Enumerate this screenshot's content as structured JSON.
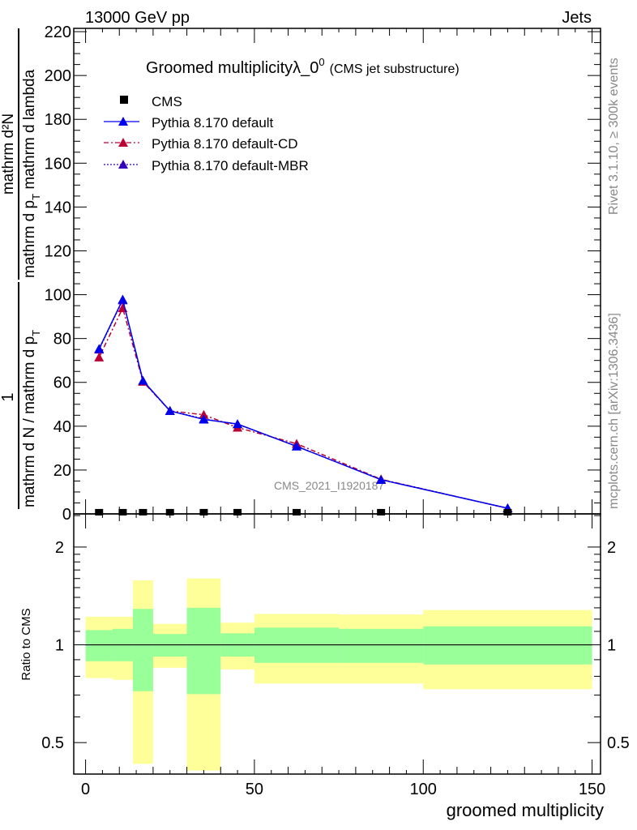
{
  "header": {
    "left": "13000 GeV pp",
    "right": "Jets"
  },
  "side_text": {
    "rivet": "Rivet 3.1.10, ≥ 300k events",
    "mcplots": "mcplots.cern.ch [arXiv:1306.3436]"
  },
  "watermark": "CMS_2021_I1920187",
  "chart_data": [
    {
      "type": "line",
      "title_main": "Groomed multiplicityλ_0",
      "title_sup": "0",
      "title_sub": "(CMS jet substructure)",
      "ylabel": {
        "frac1_num": "1",
        "frac1_den": "mathrm d N / mathrm d p",
        "frac1_den_sub": "T",
        "frac2_num": "mathrm d²N",
        "frac2_den_a": "mathrm d p",
        "frac2_den_sub": "T",
        "frac2_den_b": " mathrm d lambda"
      },
      "xlim": [
        -3.5,
        152.5
      ],
      "ylim": [
        0,
        221.5
      ],
      "yticks": [
        "0",
        "20",
        "40",
        "60",
        "80",
        "100",
        "120",
        "140",
        "160",
        "180",
        "200",
        "220"
      ],
      "x": [
        4,
        11,
        17,
        25,
        35,
        45,
        62.5,
        87.5,
        125
      ],
      "bin_edges": [
        0,
        8,
        14,
        20,
        30,
        40,
        50,
        75,
        100,
        150
      ],
      "series": [
        {
          "name": "CMS",
          "color": "#000000",
          "marker": "square",
          "values": [
            0.4,
            0.4,
            0.4,
            0.4,
            0.4,
            0.4,
            0.4,
            0.4,
            0.4
          ]
        },
        {
          "name": "Pythia 8.170 default",
          "color": "#0000ee",
          "style": "solid",
          "marker": "triangle",
          "values": [
            75.3,
            97.8,
            60.8,
            47.0,
            43.1,
            41.0,
            30.8,
            15.6,
            2.6
          ]
        },
        {
          "name": "Pythia 8.170 default-CD",
          "color": "#bb0033",
          "style": "dashdot",
          "marker": "triangle",
          "values": [
            71.4,
            93.9,
            60.3,
            47.0,
            45.2,
            39.4,
            32.0,
            15.8,
            2.5
          ]
        },
        {
          "name": "Pythia 8.170 default-MBR",
          "color": "#3300bb",
          "style": "dotted",
          "marker": "triangle",
          "values": [
            75.0,
            97.5,
            60.6,
            47.0,
            43.3,
            40.9,
            30.9,
            15.6,
            2.6
          ]
        }
      ]
    },
    {
      "type": "area",
      "ylabel": "Ratio to CMS",
      "xlabel": "groomed multiplicity",
      "yscale": "log",
      "ylim": [
        0.4,
        2.53
      ],
      "xlim": [
        -3.5,
        152.5
      ],
      "yticks": [
        "0.5",
        "1",
        "2"
      ],
      "xticks": [
        "0",
        "50",
        "100",
        "150"
      ],
      "bin_edges": [
        0,
        8,
        14,
        20,
        30,
        40,
        50,
        75,
        100,
        150
      ],
      "yellow_band": {
        "color": "#ffff99",
        "upper": [
          1.22,
          1.22,
          1.58,
          1.16,
          1.6,
          1.17,
          1.245,
          1.24,
          1.28
        ],
        "lower": [
          0.79,
          0.78,
          0.43,
          0.85,
          0.41,
          0.84,
          0.76,
          0.76,
          0.73
        ]
      },
      "green_band": {
        "color": "#99ff99",
        "upper": [
          1.11,
          1.12,
          1.29,
          1.08,
          1.3,
          1.085,
          1.13,
          1.12,
          1.14
        ],
        "lower": [
          0.89,
          0.89,
          0.72,
          0.92,
          0.705,
          0.92,
          0.88,
          0.88,
          0.87
        ]
      }
    }
  ]
}
